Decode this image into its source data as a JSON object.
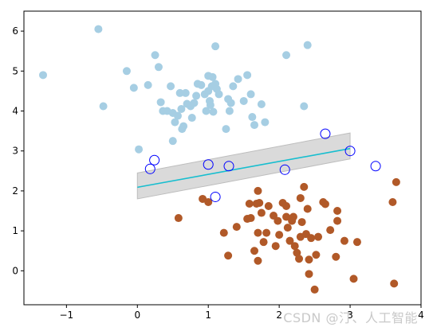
{
  "chart_data": {
    "type": "scatter",
    "title": "",
    "xlabel": "",
    "ylabel": "",
    "xlim": [
      -1.6,
      4.0
    ],
    "ylim": [
      -0.85,
      6.5
    ],
    "xticks": [
      -1,
      0,
      1,
      2,
      3,
      4
    ],
    "yticks": [
      0,
      1,
      2,
      3,
      4,
      5,
      6
    ],
    "grid": false,
    "colors": {
      "class0": "#a6cee3",
      "class1": "#b15928",
      "support_vector_edge": "#0000ff",
      "decision_line": "#17becf",
      "margin_band": "#d3d3d3"
    },
    "decision_line": {
      "x": [
        0.0,
        3.0
      ],
      "y": [
        2.09,
        3.06
      ]
    },
    "margin_band": {
      "upper": {
        "x": [
          0.0,
          3.0
        ],
        "y": [
          2.45,
          3.45
        ]
      },
      "lower": {
        "x": [
          0.0,
          3.0
        ],
        "y": [
          1.8,
          2.8
        ]
      }
    },
    "series": [
      {
        "values": [
          [
            -1.33,
            4.9
          ],
          [
            -0.55,
            6.05
          ],
          [
            -0.48,
            4.12
          ],
          [
            -0.15,
            5.0
          ],
          [
            -0.05,
            4.58
          ],
          [
            0.02,
            3.04
          ],
          [
            0.15,
            4.65
          ],
          [
            0.25,
            5.4
          ],
          [
            0.3,
            5.1
          ],
          [
            0.33,
            4.22
          ],
          [
            0.36,
            4.0
          ],
          [
            0.42,
            4.0
          ],
          [
            0.47,
            4.62
          ],
          [
            0.5,
            3.95
          ],
          [
            0.5,
            3.25
          ],
          [
            0.53,
            3.72
          ],
          [
            0.57,
            3.88
          ],
          [
            0.6,
            4.45
          ],
          [
            0.62,
            4.05
          ],
          [
            0.63,
            3.55
          ],
          [
            0.65,
            3.62
          ],
          [
            0.68,
            4.45
          ],
          [
            0.7,
            4.18
          ],
          [
            0.75,
            4.12
          ],
          [
            0.77,
            3.83
          ],
          [
            0.8,
            4.2
          ],
          [
            0.83,
            4.38
          ],
          [
            0.85,
            4.68
          ],
          [
            0.9,
            4.65
          ],
          [
            0.95,
            4.42
          ],
          [
            0.97,
            4.0
          ],
          [
            1.0,
            4.5
          ],
          [
            1.02,
            4.25
          ],
          [
            1.03,
            4.15
          ],
          [
            1.05,
            4.62
          ],
          [
            1.1,
            4.68
          ],
          [
            1.12,
            4.55
          ],
          [
            1.15,
            4.42
          ],
          [
            1.07,
            3.98
          ],
          [
            1.25,
            3.55
          ],
          [
            1.28,
            4.3
          ],
          [
            1.3,
            4.0
          ],
          [
            1.32,
            4.2
          ],
          [
            1.35,
            4.62
          ],
          [
            1.42,
            4.8
          ],
          [
            1.5,
            4.25
          ],
          [
            1.55,
            4.9
          ],
          [
            1.6,
            4.42
          ],
          [
            1.62,
            3.85
          ],
          [
            1.65,
            3.65
          ],
          [
            1.75,
            4.17
          ],
          [
            1.8,
            3.72
          ],
          [
            2.1,
            5.4
          ],
          [
            2.35,
            4.12
          ],
          [
            2.4,
            5.65
          ],
          [
            1.1,
            5.62
          ],
          [
            1.0,
            4.88
          ],
          [
            1.06,
            4.85
          ]
        ]
      },
      {
        "values": [
          [
            0.58,
            1.32
          ],
          [
            0.92,
            1.8
          ],
          [
            1.0,
            1.72
          ],
          [
            1.22,
            0.95
          ],
          [
            1.28,
            0.38
          ],
          [
            1.4,
            1.1
          ],
          [
            1.55,
            1.3
          ],
          [
            1.58,
            1.68
          ],
          [
            1.6,
            1.32
          ],
          [
            1.65,
            0.5
          ],
          [
            1.7,
            2.0
          ],
          [
            1.72,
            1.7
          ],
          [
            1.75,
            1.45
          ],
          [
            1.7,
            0.95
          ],
          [
            1.7,
            0.25
          ],
          [
            1.78,
            0.72
          ],
          [
            1.82,
            0.95
          ],
          [
            1.85,
            1.62
          ],
          [
            1.92,
            1.38
          ],
          [
            1.95,
            0.62
          ],
          [
            1.98,
            1.25
          ],
          [
            2.0,
            0.9
          ],
          [
            2.05,
            1.7
          ],
          [
            2.1,
            1.62
          ],
          [
            2.12,
            1.08
          ],
          [
            2.15,
            0.75
          ],
          [
            2.18,
            1.25
          ],
          [
            2.2,
            1.35
          ],
          [
            2.22,
            0.62
          ],
          [
            2.25,
            0.45
          ],
          [
            2.28,
            0.3
          ],
          [
            2.3,
            1.82
          ],
          [
            2.3,
            0.85
          ],
          [
            2.32,
            1.22
          ],
          [
            2.35,
            2.1
          ],
          [
            2.38,
            0.92
          ],
          [
            2.4,
            1.55
          ],
          [
            2.42,
            0.28
          ],
          [
            2.42,
            -0.08
          ],
          [
            2.45,
            0.82
          ],
          [
            2.5,
            -0.47
          ],
          [
            2.52,
            0.4
          ],
          [
            2.55,
            0.85
          ],
          [
            2.62,
            1.72
          ],
          [
            2.65,
            1.67
          ],
          [
            2.72,
            1.02
          ],
          [
            2.82,
            1.25
          ],
          [
            2.82,
            1.5
          ],
          [
            2.8,
            0.35
          ],
          [
            2.92,
            0.75
          ],
          [
            3.05,
            -0.2
          ],
          [
            3.1,
            0.72
          ],
          [
            3.6,
            1.72
          ],
          [
            3.62,
            -0.32
          ],
          [
            3.65,
            2.22
          ],
          [
            1.68,
            1.68
          ],
          [
            2.1,
            1.35
          ]
        ]
      }
    ],
    "support_vectors": [
      [
        0.18,
        2.55
      ],
      [
        0.24,
        2.77
      ],
      [
        1.0,
        2.66
      ],
      [
        1.29,
        2.62
      ],
      [
        2.08,
        2.53
      ],
      [
        2.65,
        3.43
      ],
      [
        3.0,
        3.0
      ],
      [
        3.36,
        2.62
      ],
      [
        1.1,
        1.85
      ]
    ]
  },
  "watermark": "CSDN @汀、人工智能"
}
